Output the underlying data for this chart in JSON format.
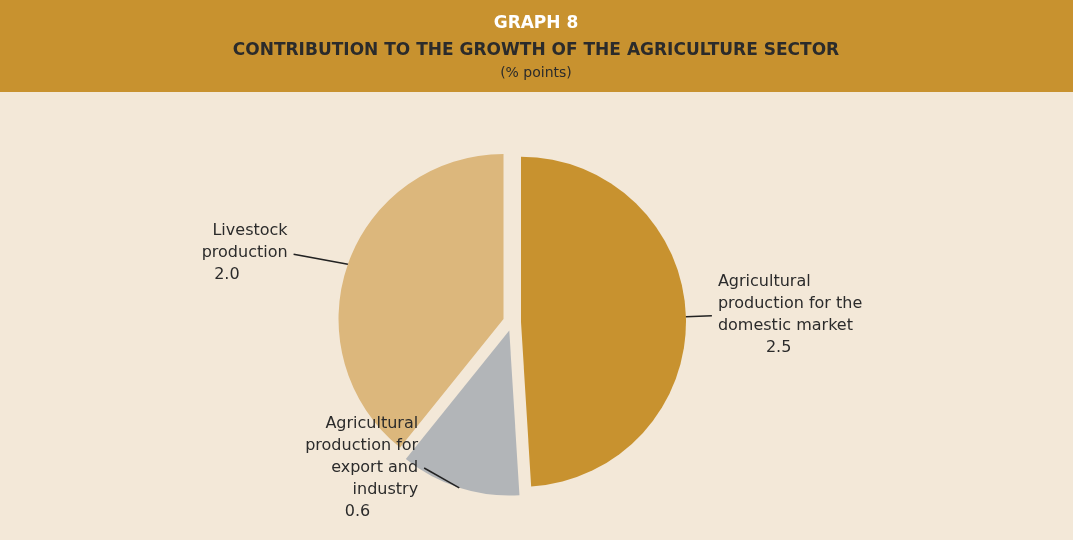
{
  "chart_data": {
    "type": "pie",
    "title": "GRAPH 8",
    "subtitle": "CONTRIBUTION TO THE GROWTH OF THE AGRICULTURE SECTOR",
    "annotations": [
      "(% points)"
    ],
    "categories": [
      "Agricultural production for the domestic market",
      "Agricultural production for export and industry",
      "Livestock production"
    ],
    "values": [
      2.5,
      0.6,
      2.0
    ],
    "value_labels": [
      "2.5",
      "0.6",
      "2.0"
    ],
    "colors": [
      "#c8922f",
      "#b2b5b8",
      "#dcb77c"
    ]
  }
}
